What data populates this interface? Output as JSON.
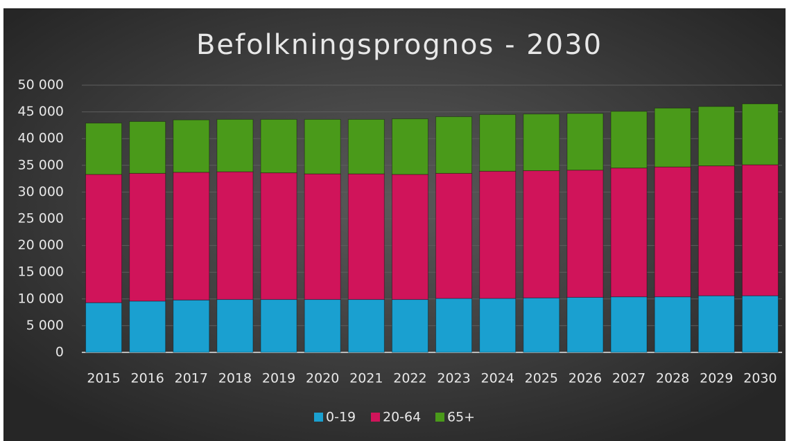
{
  "chart_data": {
    "type": "stacked_bar",
    "title": "Befolkningsprognos - 2030",
    "categories": [
      "2015",
      "2016",
      "2017",
      "2018",
      "2019",
      "2020",
      "2021",
      "2022",
      "2023",
      "2024",
      "2025",
      "2026",
      "2027",
      "2028",
      "2029",
      "2030"
    ],
    "series": [
      {
        "name": "0-19",
        "color": "#1aa0d0",
        "values": [
          9300,
          9600,
          9800,
          9900,
          9900,
          9900,
          9900,
          9900,
          10100,
          10100,
          10200,
          10300,
          10400,
          10400,
          10600,
          10600
        ]
      },
      {
        "name": "20-64",
        "color": "#d0145a",
        "values": [
          24000,
          23900,
          23900,
          23900,
          23700,
          23500,
          23500,
          23400,
          23400,
          23800,
          23800,
          23800,
          24100,
          24300,
          24300,
          24500
        ]
      },
      {
        "name": "65+",
        "color": "#4a9a1a",
        "values": [
          9600,
          9700,
          9800,
          9800,
          10000,
          10200,
          10200,
          10400,
          10600,
          10600,
          10600,
          10600,
          10600,
          11000,
          11100,
          11400
        ]
      }
    ],
    "ylim": [
      0,
      50000
    ],
    "yticks": [
      0,
      {
        "value": 5000,
        "label": "5 000"
      },
      {
        "value": 10000,
        "label": "10 000"
      },
      {
        "value": 15000,
        "label": "15 000"
      },
      {
        "value": 20000,
        "label": "20 000"
      },
      {
        "value": 25000,
        "label": "25 000"
      },
      {
        "value": 30000,
        "label": "30 000"
      },
      {
        "value": 35000,
        "label": "35 000"
      },
      {
        "value": 40000,
        "label": "40 000"
      },
      {
        "value": 45000,
        "label": "45 000"
      },
      {
        "value": 50000,
        "label": "50 000"
      }
    ],
    "grid": true,
    "legend": "bottom"
  }
}
